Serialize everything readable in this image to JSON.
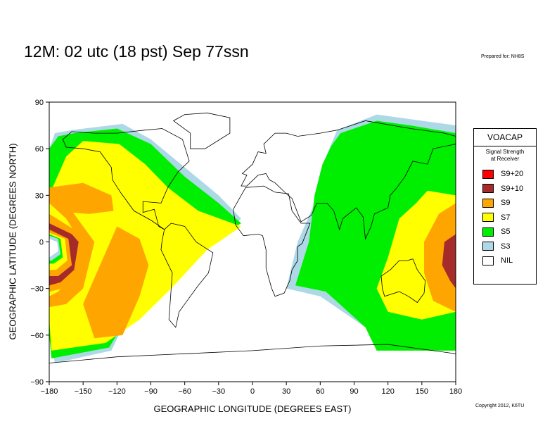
{
  "title": "12M:  02 utc (18 pst) Sep 77ssn",
  "prepared_for": "Prepared for: NH8S",
  "copyright": "Copyright 2012, K6TU",
  "legend": {
    "title": "VOACAP",
    "subtitle_line1": "Signal Strength",
    "subtitle_line2": "at Receiver",
    "items": [
      {
        "label": "S9+20",
        "color": "#ff0000"
      },
      {
        "label": "S9+10",
        "color": "#a52a2a"
      },
      {
        "label": "S9",
        "color": "#ffa500"
      },
      {
        "label": "S7",
        "color": "#ffff00"
      },
      {
        "label": "S5",
        "color": "#00ee00"
      },
      {
        "label": "S3",
        "color": "#add8e6"
      },
      {
        "label": "NIL",
        "color": "#ffffff"
      }
    ]
  },
  "chart_data": {
    "type": "heatmap",
    "xlabel": "GEOGRAPHIC LONGITUDE (DEGREES EAST)",
    "ylabel": "GEOGRAPHIC LATITUDE (DEGREES NORTH)",
    "xlim": [
      -180,
      180
    ],
    "ylim": [
      -90,
      90
    ],
    "xticks": [
      "−180",
      "−150",
      "−120",
      "−90",
      "−60",
      "−30",
      "0",
      "30",
      "60",
      "90",
      "120",
      "150",
      "180"
    ],
    "yticks": [
      "90",
      "60",
      "30",
      "0",
      "−30",
      "−60",
      "−90"
    ],
    "regions": [
      {
        "level": "S3",
        "polygon": [
          [
            -160,
            72
          ],
          [
            -115,
            76
          ],
          [
            -90,
            66
          ],
          [
            -55,
            45
          ],
          [
            -30,
            30
          ],
          [
            -10,
            15
          ],
          [
            -25,
            5
          ],
          [
            -70,
            -20
          ],
          [
            -105,
            -40
          ],
          [
            -125,
            -70
          ],
          [
            -175,
            -78
          ],
          [
            -180,
            -60
          ],
          [
            -180,
            60
          ],
          [
            -175,
            70
          ]
        ]
      },
      {
        "level": "S5",
        "polygon": [
          [
            -158,
            70
          ],
          [
            -120,
            73
          ],
          [
            -90,
            63
          ],
          [
            -60,
            42
          ],
          [
            -30,
            25
          ],
          [
            -10,
            12
          ],
          [
            -30,
            3
          ],
          [
            -70,
            -22
          ],
          [
            -105,
            -42
          ],
          [
            -127,
            -68
          ],
          [
            -178,
            -75
          ],
          [
            -180,
            -60
          ],
          [
            -180,
            60
          ],
          [
            -172,
            68
          ]
        ]
      },
      {
        "level": "S7",
        "polygon": [
          [
            -150,
            65
          ],
          [
            -118,
            63
          ],
          [
            -95,
            50
          ],
          [
            -75,
            35
          ],
          [
            -48,
            20
          ],
          [
            -10,
            10
          ],
          [
            -40,
            -5
          ],
          [
            -72,
            -30
          ],
          [
            -100,
            -50
          ],
          [
            -130,
            -65
          ],
          [
            -178,
            -70
          ],
          [
            -180,
            -50
          ],
          [
            -180,
            30
          ],
          [
            -165,
            55
          ]
        ]
      },
      {
        "level": "S9",
        "polygon": [
          [
            -180,
            35
          ],
          [
            -150,
            38
          ],
          [
            -125,
            30
          ],
          [
            -123,
            20
          ],
          [
            -145,
            18
          ],
          [
            -180,
            20
          ]
        ]
      },
      {
        "level": "S9",
        "polygon": [
          [
            -120,
            10
          ],
          [
            -100,
            2
          ],
          [
            -92,
            -15
          ],
          [
            -100,
            -35
          ],
          [
            -115,
            -60
          ],
          [
            -140,
            -62
          ],
          [
            -150,
            -40
          ],
          [
            -138,
            -20
          ]
        ]
      },
      {
        "level": "S9",
        "polygon": [
          [
            -180,
            30
          ],
          [
            -160,
            20
          ],
          [
            -140,
            0
          ],
          [
            -150,
            -30
          ],
          [
            -165,
            -40
          ],
          [
            -180,
            -42
          ]
        ]
      },
      {
        "level": "S7",
        "polygon": [
          [
            -180,
            25
          ],
          [
            -165,
            15
          ],
          [
            -152,
            0
          ],
          [
            -160,
            -22
          ],
          [
            -172,
            -32
          ],
          [
            -180,
            -35
          ]
        ]
      },
      {
        "level": "S9",
        "polygon": [
          [
            -180,
            18
          ],
          [
            -158,
            8
          ],
          [
            -150,
            0
          ],
          [
            -155,
            -20
          ],
          [
            -168,
            -30
          ],
          [
            -180,
            -32
          ]
        ]
      },
      {
        "level": "S9+10",
        "polygon": [
          [
            -180,
            12
          ],
          [
            -160,
            5
          ],
          [
            -154,
            0
          ],
          [
            -158,
            -18
          ],
          [
            -170,
            -26
          ],
          [
            -180,
            -28
          ]
        ]
      },
      {
        "level": "S9",
        "polygon": [
          [
            -180,
            8
          ],
          [
            -163,
            2
          ],
          [
            -160,
            -15
          ],
          [
            -172,
            -22
          ],
          [
            -180,
            -22
          ]
        ]
      },
      {
        "level": "S7",
        "polygon": [
          [
            -180,
            6
          ],
          [
            -166,
            2
          ],
          [
            -164,
            -12
          ],
          [
            -174,
            -18
          ],
          [
            -180,
            -18
          ]
        ]
      },
      {
        "level": "S5",
        "polygon": [
          [
            -180,
            5
          ],
          [
            -170,
            2
          ],
          [
            -168,
            -10
          ],
          [
            -176,
            -14
          ],
          [
            -180,
            -14
          ]
        ]
      },
      {
        "level": "S3",
        "polygon": [
          [
            -180,
            4
          ],
          [
            -172,
            2
          ],
          [
            -170,
            -8
          ],
          [
            -178,
            -12
          ],
          [
            -180,
            -12
          ]
        ]
      },
      {
        "level": "NIL",
        "polygon": [
          [
            -180,
            2
          ],
          [
            -173,
            0
          ],
          [
            -172,
            -6
          ],
          [
            -180,
            -10
          ]
        ]
      },
      {
        "level": "S3",
        "polygon": [
          [
            75,
            72
          ],
          [
            110,
            82
          ],
          [
            150,
            78
          ],
          [
            180,
            75
          ],
          [
            180,
            -58
          ],
          [
            150,
            -65
          ],
          [
            110,
            -62
          ],
          [
            100,
            -55
          ],
          [
            60,
            -35
          ],
          [
            30,
            -30
          ],
          [
            40,
            0
          ],
          [
            55,
            25
          ],
          [
            60,
            45
          ],
          [
            68,
            60
          ]
        ]
      },
      {
        "level": "S5",
        "polygon": [
          [
            78,
            70
          ],
          [
            110,
            78
          ],
          [
            140,
            75
          ],
          [
            180,
            70
          ],
          [
            180,
            -70
          ],
          [
            110,
            -70
          ],
          [
            100,
            -55
          ],
          [
            65,
            -32
          ],
          [
            38,
            -28
          ],
          [
            50,
            0
          ],
          [
            55,
            30
          ],
          [
            62,
            50
          ],
          [
            70,
            62
          ]
        ]
      },
      {
        "level": "S7",
        "polygon": [
          [
            180,
            30
          ],
          [
            155,
            33
          ],
          [
            145,
            25
          ],
          [
            130,
            15
          ],
          [
            120,
            -10
          ],
          [
            110,
            -30
          ],
          [
            120,
            -45
          ],
          [
            150,
            -50
          ],
          [
            180,
            -45
          ]
        ]
      },
      {
        "level": "S9",
        "polygon": [
          [
            180,
            25
          ],
          [
            165,
            18
          ],
          [
            152,
            0
          ],
          [
            152,
            -20
          ],
          [
            160,
            -38
          ],
          [
            180,
            -45
          ]
        ]
      },
      {
        "level": "S9+10",
        "polygon": [
          [
            180,
            5
          ],
          [
            170,
            0
          ],
          [
            168,
            -15
          ],
          [
            175,
            -25
          ],
          [
            180,
            -30
          ]
        ]
      }
    ]
  }
}
